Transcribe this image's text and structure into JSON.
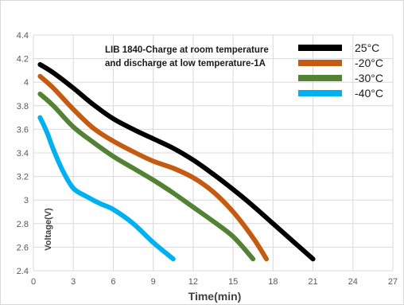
{
  "chart_data": {
    "type": "line",
    "title_lines": [
      "LIB 1840-Charge at room temperature",
      "and discharge at low temperature-1A"
    ],
    "xlabel": "Time(min)",
    "ylabel": "Voltage(V)",
    "xlim": [
      0,
      27
    ],
    "ylim": [
      2.4,
      4.4
    ],
    "xticks": [
      0,
      3,
      6,
      9,
      12,
      15,
      18,
      21,
      24,
      27
    ],
    "yticks": [
      2.4,
      2.6,
      2.8,
      3.0,
      3.2,
      3.4,
      3.6,
      3.8,
      4.0,
      4.2,
      4.4
    ],
    "ytick_labels": [
      "2.4",
      "2.6",
      "2.8",
      "3",
      "3.2",
      "3.4",
      "3.6",
      "3.8",
      "4",
      "4.2",
      "4.4"
    ],
    "grid": true,
    "legend_position": "top-right",
    "series": [
      {
        "name": "25°C",
        "color": "#000000",
        "x": [
          0.5,
          1.5,
          3,
          4.5,
          6,
          7.5,
          9,
          10.5,
          12,
          13.5,
          15,
          16.5,
          18,
          19.5,
          21
        ],
        "y": [
          4.15,
          4.08,
          3.95,
          3.81,
          3.69,
          3.6,
          3.52,
          3.44,
          3.34,
          3.22,
          3.09,
          2.95,
          2.8,
          2.65,
          2.5
        ]
      },
      {
        "name": "-20°C",
        "color": "#c55a11",
        "x": [
          0.5,
          1.5,
          3,
          4.5,
          6,
          7.5,
          9,
          10.5,
          12,
          13.5,
          15,
          16.5,
          17.5
        ],
        "y": [
          4.05,
          3.95,
          3.77,
          3.61,
          3.5,
          3.41,
          3.33,
          3.27,
          3.19,
          3.07,
          2.9,
          2.68,
          2.5
        ]
      },
      {
        "name": "-30°C",
        "color": "#548235",
        "x": [
          0.5,
          1.5,
          3,
          4.5,
          6,
          7.5,
          9,
          10.5,
          12,
          13.5,
          15,
          16.5
        ],
        "y": [
          3.9,
          3.8,
          3.62,
          3.49,
          3.37,
          3.27,
          3.17,
          3.06,
          2.94,
          2.82,
          2.69,
          2.5
        ]
      },
      {
        "name": "-40°C",
        "color": "#00b0f0",
        "x": [
          0.5,
          1.0,
          1.5,
          2.2,
          3.0,
          4.0,
          5.0,
          6.0,
          7.5,
          9.0,
          10.5
        ],
        "y": [
          3.7,
          3.58,
          3.43,
          3.25,
          3.1,
          3.03,
          2.97,
          2.92,
          2.8,
          2.64,
          2.5
        ]
      }
    ]
  }
}
